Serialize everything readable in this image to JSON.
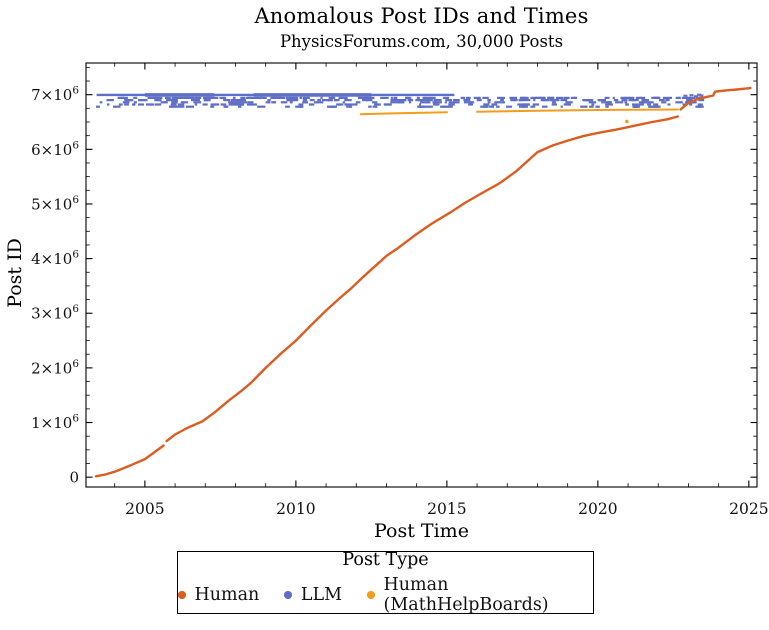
{
  "chart_data": {
    "type": "scatter",
    "title": "Anomalous Post IDs and Times",
    "subtitle": "PhysicsForums.com, 30,000 Posts",
    "xlabel": "Post Time",
    "ylabel": "Post ID",
    "x_range": [
      2003.05,
      2025.27
    ],
    "y_range": [
      -180000,
      7580000
    ],
    "grid": false,
    "frame_ticks": "inward, all four sides",
    "x_major_ticks": [
      {
        "value": 2005,
        "label": "2005"
      },
      {
        "value": 2010,
        "label": "2010"
      },
      {
        "value": 2015,
        "label": "2015"
      },
      {
        "value": 2020,
        "label": "2020"
      },
      {
        "value": 2025,
        "label": "2025"
      }
    ],
    "x_minor_step": 1,
    "y_major_ticks": [
      {
        "value": 0,
        "label": "0"
      },
      {
        "value": 1000000,
        "label": "1×10^6"
      },
      {
        "value": 2000000,
        "label": "2×10^6"
      },
      {
        "value": 3000000,
        "label": "3×10^6"
      },
      {
        "value": 4000000,
        "label": "4×10^6"
      },
      {
        "value": 5000000,
        "label": "5×10^6"
      },
      {
        "value": 6000000,
        "label": "6×10^6"
      },
      {
        "value": 7000000,
        "label": "7×10^6"
      }
    ],
    "y_minor_step": 250000,
    "legend": {
      "title": "Post Type",
      "position": "below plot, boxed"
    },
    "series": [
      {
        "name": "LLM",
        "type": "band-scatter",
        "color": "#5F6FC7",
        "band": {
          "x_min": 2003.4,
          "x_max": 2023.5,
          "y_min": 6780000,
          "y_max": 6965000,
          "count": 380
        },
        "line": {
          "y": 6995000,
          "x_min": 2003.4,
          "x_max": 2015.25
        },
        "thick_segments": [
          [
            2005.0,
            2007.3
          ],
          [
            2008.6,
            2012.5
          ]
        ],
        "extra_points": [
          [
            2022.9,
            6980000
          ],
          [
            2023.1,
            6990000
          ],
          [
            2023.25,
            6970000
          ],
          [
            2023.35,
            7000000
          ],
          [
            2023.43,
            6985000
          ]
        ]
      },
      {
        "name": "Human (MathHelpBoards)",
        "type": "curve",
        "color": "#F29D1C",
        "points": [
          [
            2012.15,
            6642000
          ],
          [
            2013.0,
            6655000
          ],
          [
            2014.0,
            6667000
          ],
          [
            2015.0,
            6678000
          ],
          [
            2016.0,
            6688000
          ],
          [
            2017.0,
            6698000
          ],
          [
            2018.0,
            6706000
          ],
          [
            2019.0,
            6713000
          ],
          [
            2020.0,
            6719000
          ],
          [
            2021.0,
            6724000
          ],
          [
            2022.0,
            6727000
          ],
          [
            2022.65,
            6729000
          ]
        ],
        "gaps": [
          [
            2013.32,
            2013.4
          ],
          [
            2015.45,
            2015.52
          ]
        ],
        "outliers": [
          [
            2020.96,
            6510000
          ]
        ],
        "stroke_width": 2.0
      },
      {
        "name": "Human",
        "type": "curve",
        "color": "#DC5D20",
        "points": [
          [
            2003.38,
            15000
          ],
          [
            2003.7,
            50000
          ],
          [
            2004.0,
            100000
          ],
          [
            2004.5,
            210000
          ],
          [
            2005.0,
            330000
          ],
          [
            2005.3,
            450000
          ],
          [
            2005.62,
            580000
          ],
          [
            2005.72,
            660000
          ],
          [
            2006.0,
            780000
          ],
          [
            2006.4,
            900000
          ],
          [
            2006.9,
            1020000
          ],
          [
            2007.3,
            1180000
          ],
          [
            2007.8,
            1410000
          ],
          [
            2008.2,
            1580000
          ],
          [
            2008.5,
            1720000
          ],
          [
            2009.0,
            2000000
          ],
          [
            2009.5,
            2260000
          ],
          [
            2010.0,
            2500000
          ],
          [
            2010.5,
            2780000
          ],
          [
            2011.0,
            3050000
          ],
          [
            2011.5,
            3300000
          ],
          [
            2011.8,
            3440000
          ],
          [
            2012.2,
            3650000
          ],
          [
            2012.6,
            3850000
          ],
          [
            2013.0,
            4050000
          ],
          [
            2013.4,
            4200000
          ],
          [
            2014.0,
            4450000
          ],
          [
            2014.5,
            4640000
          ],
          [
            2015.1,
            4840000
          ],
          [
            2015.6,
            5020000
          ],
          [
            2016.1,
            5180000
          ],
          [
            2016.75,
            5380000
          ],
          [
            2017.3,
            5600000
          ],
          [
            2018.0,
            5950000
          ],
          [
            2018.5,
            6070000
          ],
          [
            2019.0,
            6160000
          ],
          [
            2019.5,
            6240000
          ],
          [
            2020.0,
            6300000
          ],
          [
            2020.7,
            6370000
          ],
          [
            2021.2,
            6430000
          ],
          [
            2021.8,
            6500000
          ],
          [
            2022.3,
            6550000
          ],
          [
            2022.65,
            6600000
          ],
          [
            2022.74,
            6730000
          ],
          [
            2023.0,
            6850000
          ],
          [
            2023.3,
            6920000
          ],
          [
            2023.6,
            6960000
          ],
          [
            2023.82,
            6985000
          ],
          [
            2023.88,
            7055000
          ],
          [
            2024.2,
            7075000
          ],
          [
            2024.6,
            7095000
          ],
          [
            2025.05,
            7120000
          ]
        ],
        "gaps": [
          [
            2005.63,
            2005.71
          ],
          [
            2022.66,
            2022.73
          ]
        ],
        "stroke_width": 2.4
      }
    ]
  }
}
